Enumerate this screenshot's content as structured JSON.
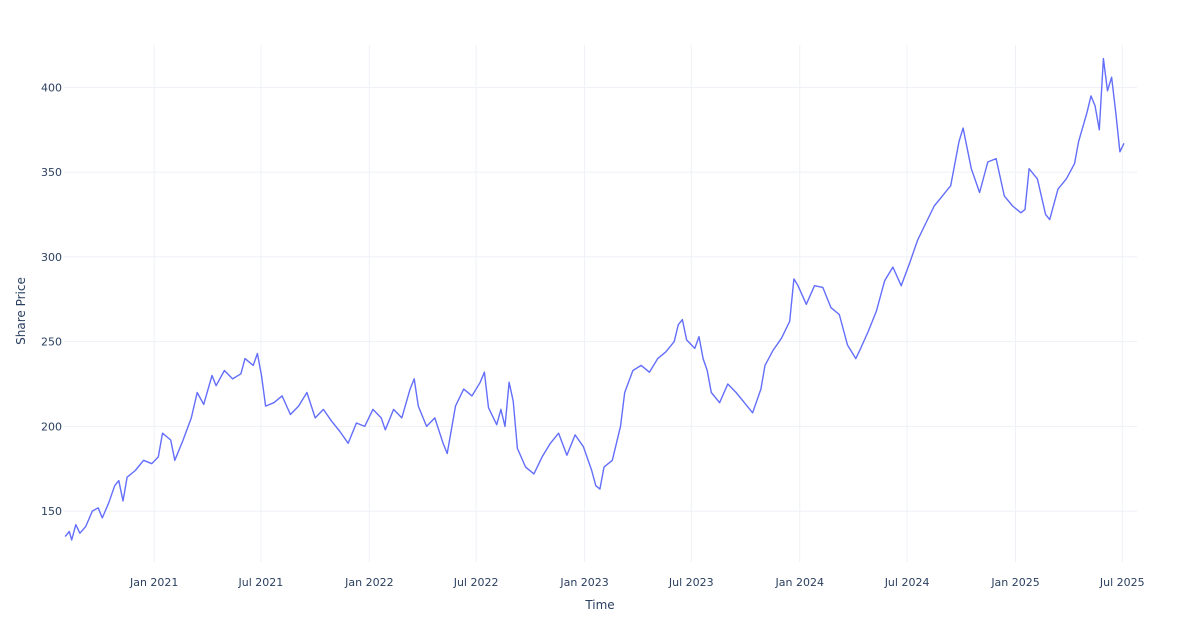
{
  "chart_data": {
    "type": "line",
    "title": "",
    "xlabel": "Time",
    "ylabel": "Share Price",
    "grid": true,
    "legend": "none",
    "xlim": [
      "2020-08-01",
      "2025-07-26"
    ],
    "ylim": [
      120,
      425
    ],
    "x_ticks": [
      {
        "date": "2021-01-01",
        "label": "Jan 2021"
      },
      {
        "date": "2021-07-01",
        "label": "Jul 2021"
      },
      {
        "date": "2022-01-01",
        "label": "Jan 2022"
      },
      {
        "date": "2022-07-01",
        "label": "Jul 2022"
      },
      {
        "date": "2023-01-01",
        "label": "Jan 2023"
      },
      {
        "date": "2023-07-01",
        "label": "Jul 2023"
      },
      {
        "date": "2024-01-01",
        "label": "Jan 2024"
      },
      {
        "date": "2024-07-01",
        "label": "Jul 2024"
      },
      {
        "date": "2025-01-01",
        "label": "Jan 2025"
      },
      {
        "date": "2025-07-01",
        "label": "Jul 2025"
      }
    ],
    "y_ticks": [
      {
        "value": 150,
        "label": "150"
      },
      {
        "value": 200,
        "label": "200"
      },
      {
        "value": 250,
        "label": "250"
      },
      {
        "value": 300,
        "label": "300"
      },
      {
        "value": 350,
        "label": "350"
      },
      {
        "value": 400,
        "label": "400"
      }
    ],
    "series": [
      {
        "color": "#636efa",
        "points": [
          [
            "2020-08-03",
            135
          ],
          [
            "2020-08-10",
            138
          ],
          [
            "2020-08-14",
            133
          ],
          [
            "2020-08-21",
            142
          ],
          [
            "2020-08-28",
            137
          ],
          [
            "2020-09-07",
            141
          ],
          [
            "2020-09-18",
            150
          ],
          [
            "2020-09-28",
            152
          ],
          [
            "2020-10-05",
            146
          ],
          [
            "2020-10-16",
            155
          ],
          [
            "2020-10-26",
            165
          ],
          [
            "2020-11-02",
            168
          ],
          [
            "2020-11-09",
            156
          ],
          [
            "2020-11-16",
            170
          ],
          [
            "2020-11-30",
            174
          ],
          [
            "2020-12-14",
            180
          ],
          [
            "2020-12-28",
            178
          ],
          [
            "2021-01-08",
            182
          ],
          [
            "2021-01-15",
            196
          ],
          [
            "2021-01-29",
            192
          ],
          [
            "2021-02-05",
            180
          ],
          [
            "2021-02-19",
            192
          ],
          [
            "2021-03-05",
            205
          ],
          [
            "2021-03-15",
            220
          ],
          [
            "2021-03-26",
            213
          ],
          [
            "2021-04-09",
            230
          ],
          [
            "2021-04-16",
            224
          ],
          [
            "2021-04-30",
            233
          ],
          [
            "2021-05-14",
            228
          ],
          [
            "2021-05-28",
            231
          ],
          [
            "2021-06-04",
            240
          ],
          [
            "2021-06-18",
            236
          ],
          [
            "2021-06-25",
            243
          ],
          [
            "2021-07-02",
            230
          ],
          [
            "2021-07-09",
            212
          ],
          [
            "2021-07-23",
            214
          ],
          [
            "2021-08-06",
            218
          ],
          [
            "2021-08-20",
            207
          ],
          [
            "2021-09-03",
            212
          ],
          [
            "2021-09-17",
            220
          ],
          [
            "2021-10-01",
            205
          ],
          [
            "2021-10-15",
            210
          ],
          [
            "2021-10-29",
            203
          ],
          [
            "2021-11-12",
            197
          ],
          [
            "2021-11-26",
            190
          ],
          [
            "2021-12-10",
            202
          ],
          [
            "2021-12-24",
            200
          ],
          [
            "2022-01-07",
            210
          ],
          [
            "2022-01-21",
            205
          ],
          [
            "2022-01-28",
            198
          ],
          [
            "2022-02-11",
            210
          ],
          [
            "2022-02-25",
            205
          ],
          [
            "2022-03-11",
            222
          ],
          [
            "2022-03-18",
            228
          ],
          [
            "2022-03-25",
            212
          ],
          [
            "2022-04-08",
            200
          ],
          [
            "2022-04-22",
            205
          ],
          [
            "2022-05-06",
            190
          ],
          [
            "2022-05-13",
            184
          ],
          [
            "2022-05-27",
            212
          ],
          [
            "2022-06-10",
            222
          ],
          [
            "2022-06-24",
            218
          ],
          [
            "2022-07-08",
            226
          ],
          [
            "2022-07-15",
            232
          ],
          [
            "2022-07-22",
            211
          ],
          [
            "2022-08-05",
            201
          ],
          [
            "2022-08-12",
            210
          ],
          [
            "2022-08-19",
            200
          ],
          [
            "2022-08-26",
            226
          ],
          [
            "2022-09-02",
            215
          ],
          [
            "2022-09-09",
            187
          ],
          [
            "2022-09-23",
            176
          ],
          [
            "2022-10-07",
            172
          ],
          [
            "2022-10-21",
            182
          ],
          [
            "2022-11-04",
            190
          ],
          [
            "2022-11-18",
            196
          ],
          [
            "2022-12-02",
            183
          ],
          [
            "2022-12-16",
            195
          ],
          [
            "2022-12-30",
            188
          ],
          [
            "2023-01-13",
            174
          ],
          [
            "2023-01-20",
            165
          ],
          [
            "2023-01-27",
            163
          ],
          [
            "2023-02-03",
            176
          ],
          [
            "2023-02-17",
            180
          ],
          [
            "2023-03-03",
            200
          ],
          [
            "2023-03-10",
            220
          ],
          [
            "2023-03-24",
            233
          ],
          [
            "2023-04-07",
            236
          ],
          [
            "2023-04-21",
            232
          ],
          [
            "2023-05-05",
            240
          ],
          [
            "2023-05-19",
            244
          ],
          [
            "2023-06-02",
            250
          ],
          [
            "2023-06-09",
            260
          ],
          [
            "2023-06-16",
            263
          ],
          [
            "2023-06-23",
            251
          ],
          [
            "2023-07-07",
            246
          ],
          [
            "2023-07-14",
            253
          ],
          [
            "2023-07-21",
            240
          ],
          [
            "2023-07-28",
            233
          ],
          [
            "2023-08-04",
            220
          ],
          [
            "2023-08-18",
            214
          ],
          [
            "2023-09-01",
            225
          ],
          [
            "2023-09-15",
            220
          ],
          [
            "2023-09-29",
            214
          ],
          [
            "2023-10-13",
            208
          ],
          [
            "2023-10-27",
            222
          ],
          [
            "2023-11-03",
            236
          ],
          [
            "2023-11-17",
            245
          ],
          [
            "2023-12-01",
            252
          ],
          [
            "2023-12-15",
            262
          ],
          [
            "2023-12-22",
            287
          ],
          [
            "2023-12-29",
            283
          ],
          [
            "2024-01-12",
            272
          ],
          [
            "2024-01-26",
            283
          ],
          [
            "2024-02-09",
            282
          ],
          [
            "2024-02-23",
            270
          ],
          [
            "2024-03-08",
            266
          ],
          [
            "2024-03-22",
            248
          ],
          [
            "2024-04-05",
            240
          ],
          [
            "2024-04-12",
            245
          ],
          [
            "2024-04-26",
            256
          ],
          [
            "2024-05-10",
            268
          ],
          [
            "2024-05-24",
            286
          ],
          [
            "2024-06-07",
            294
          ],
          [
            "2024-06-21",
            283
          ],
          [
            "2024-07-05",
            296
          ],
          [
            "2024-07-19",
            310
          ],
          [
            "2024-08-02",
            320
          ],
          [
            "2024-08-16",
            330
          ],
          [
            "2024-08-30",
            336
          ],
          [
            "2024-09-13",
            342
          ],
          [
            "2024-09-27",
            368
          ],
          [
            "2024-10-04",
            376
          ],
          [
            "2024-10-18",
            352
          ],
          [
            "2024-11-01",
            338
          ],
          [
            "2024-11-15",
            356
          ],
          [
            "2024-11-29",
            358
          ],
          [
            "2024-12-13",
            336
          ],
          [
            "2024-12-27",
            330
          ],
          [
            "2025-01-10",
            326
          ],
          [
            "2025-01-17",
            328
          ],
          [
            "2025-01-24",
            352
          ],
          [
            "2025-02-07",
            346
          ],
          [
            "2025-02-21",
            325
          ],
          [
            "2025-02-28",
            322
          ],
          [
            "2025-03-14",
            340
          ],
          [
            "2025-03-28",
            346
          ],
          [
            "2025-04-11",
            355
          ],
          [
            "2025-04-18",
            368
          ],
          [
            "2025-05-02",
            385
          ],
          [
            "2025-05-09",
            395
          ],
          [
            "2025-05-16",
            389
          ],
          [
            "2025-05-23",
            375
          ],
          [
            "2025-05-30",
            417
          ],
          [
            "2025-06-06",
            398
          ],
          [
            "2025-06-13",
            406
          ],
          [
            "2025-06-20",
            385
          ],
          [
            "2025-06-27",
            362
          ],
          [
            "2025-07-04",
            367
          ]
        ]
      }
    ]
  }
}
